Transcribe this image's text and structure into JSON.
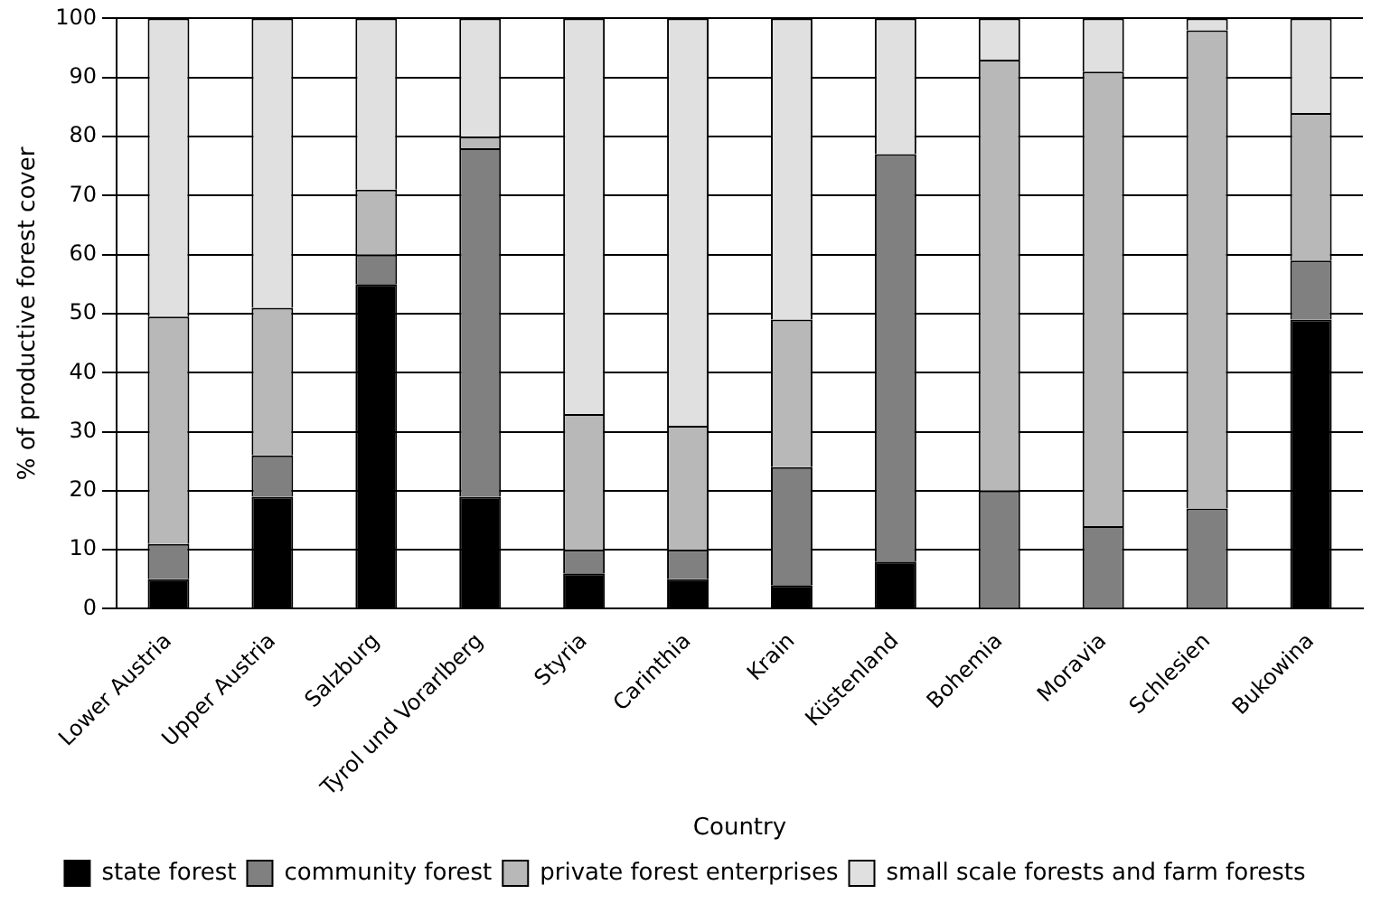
{
  "chart_data": {
    "type": "bar",
    "stacked": true,
    "xlabel": "Country",
    "ylabel": "% of productive forest cover",
    "categories": [
      "Lower Austria",
      "Upper Austria",
      "Salzburg",
      "Tyrol und Vorarlberg",
      "Styria",
      "Carinthia",
      "Krain",
      "Küstenland",
      "Bohemia",
      "Moravia",
      "Schlesien",
      "Bukowina"
    ],
    "series": [
      {
        "name": "state forest",
        "color": "#000000",
        "values": [
          5,
          19,
          55,
          19,
          6,
          5,
          4,
          8,
          0,
          0,
          0,
          49
        ]
      },
      {
        "name": "community forest",
        "color": "#808080",
        "values": [
          6,
          7,
          5,
          59,
          4,
          5,
          20,
          69,
          20,
          14,
          17,
          10
        ]
      },
      {
        "name": "private forest enterprises",
        "color": "#b8b8b8",
        "values": [
          38.5,
          25,
          11,
          2,
          23,
          21,
          25,
          0,
          73,
          77,
          81,
          25
        ]
      },
      {
        "name": "small scale forests and farm forests",
        "color": "#e0e0e0",
        "values": [
          50.5,
          49,
          29,
          20,
          67,
          69,
          51,
          23,
          7,
          9,
          2,
          16
        ]
      }
    ],
    "ylim": [
      0,
      100
    ],
    "yticks": [
      0,
      10,
      20,
      30,
      40,
      50,
      60,
      70,
      80,
      90,
      100
    ],
    "grid": "y",
    "legend": "bottom"
  }
}
